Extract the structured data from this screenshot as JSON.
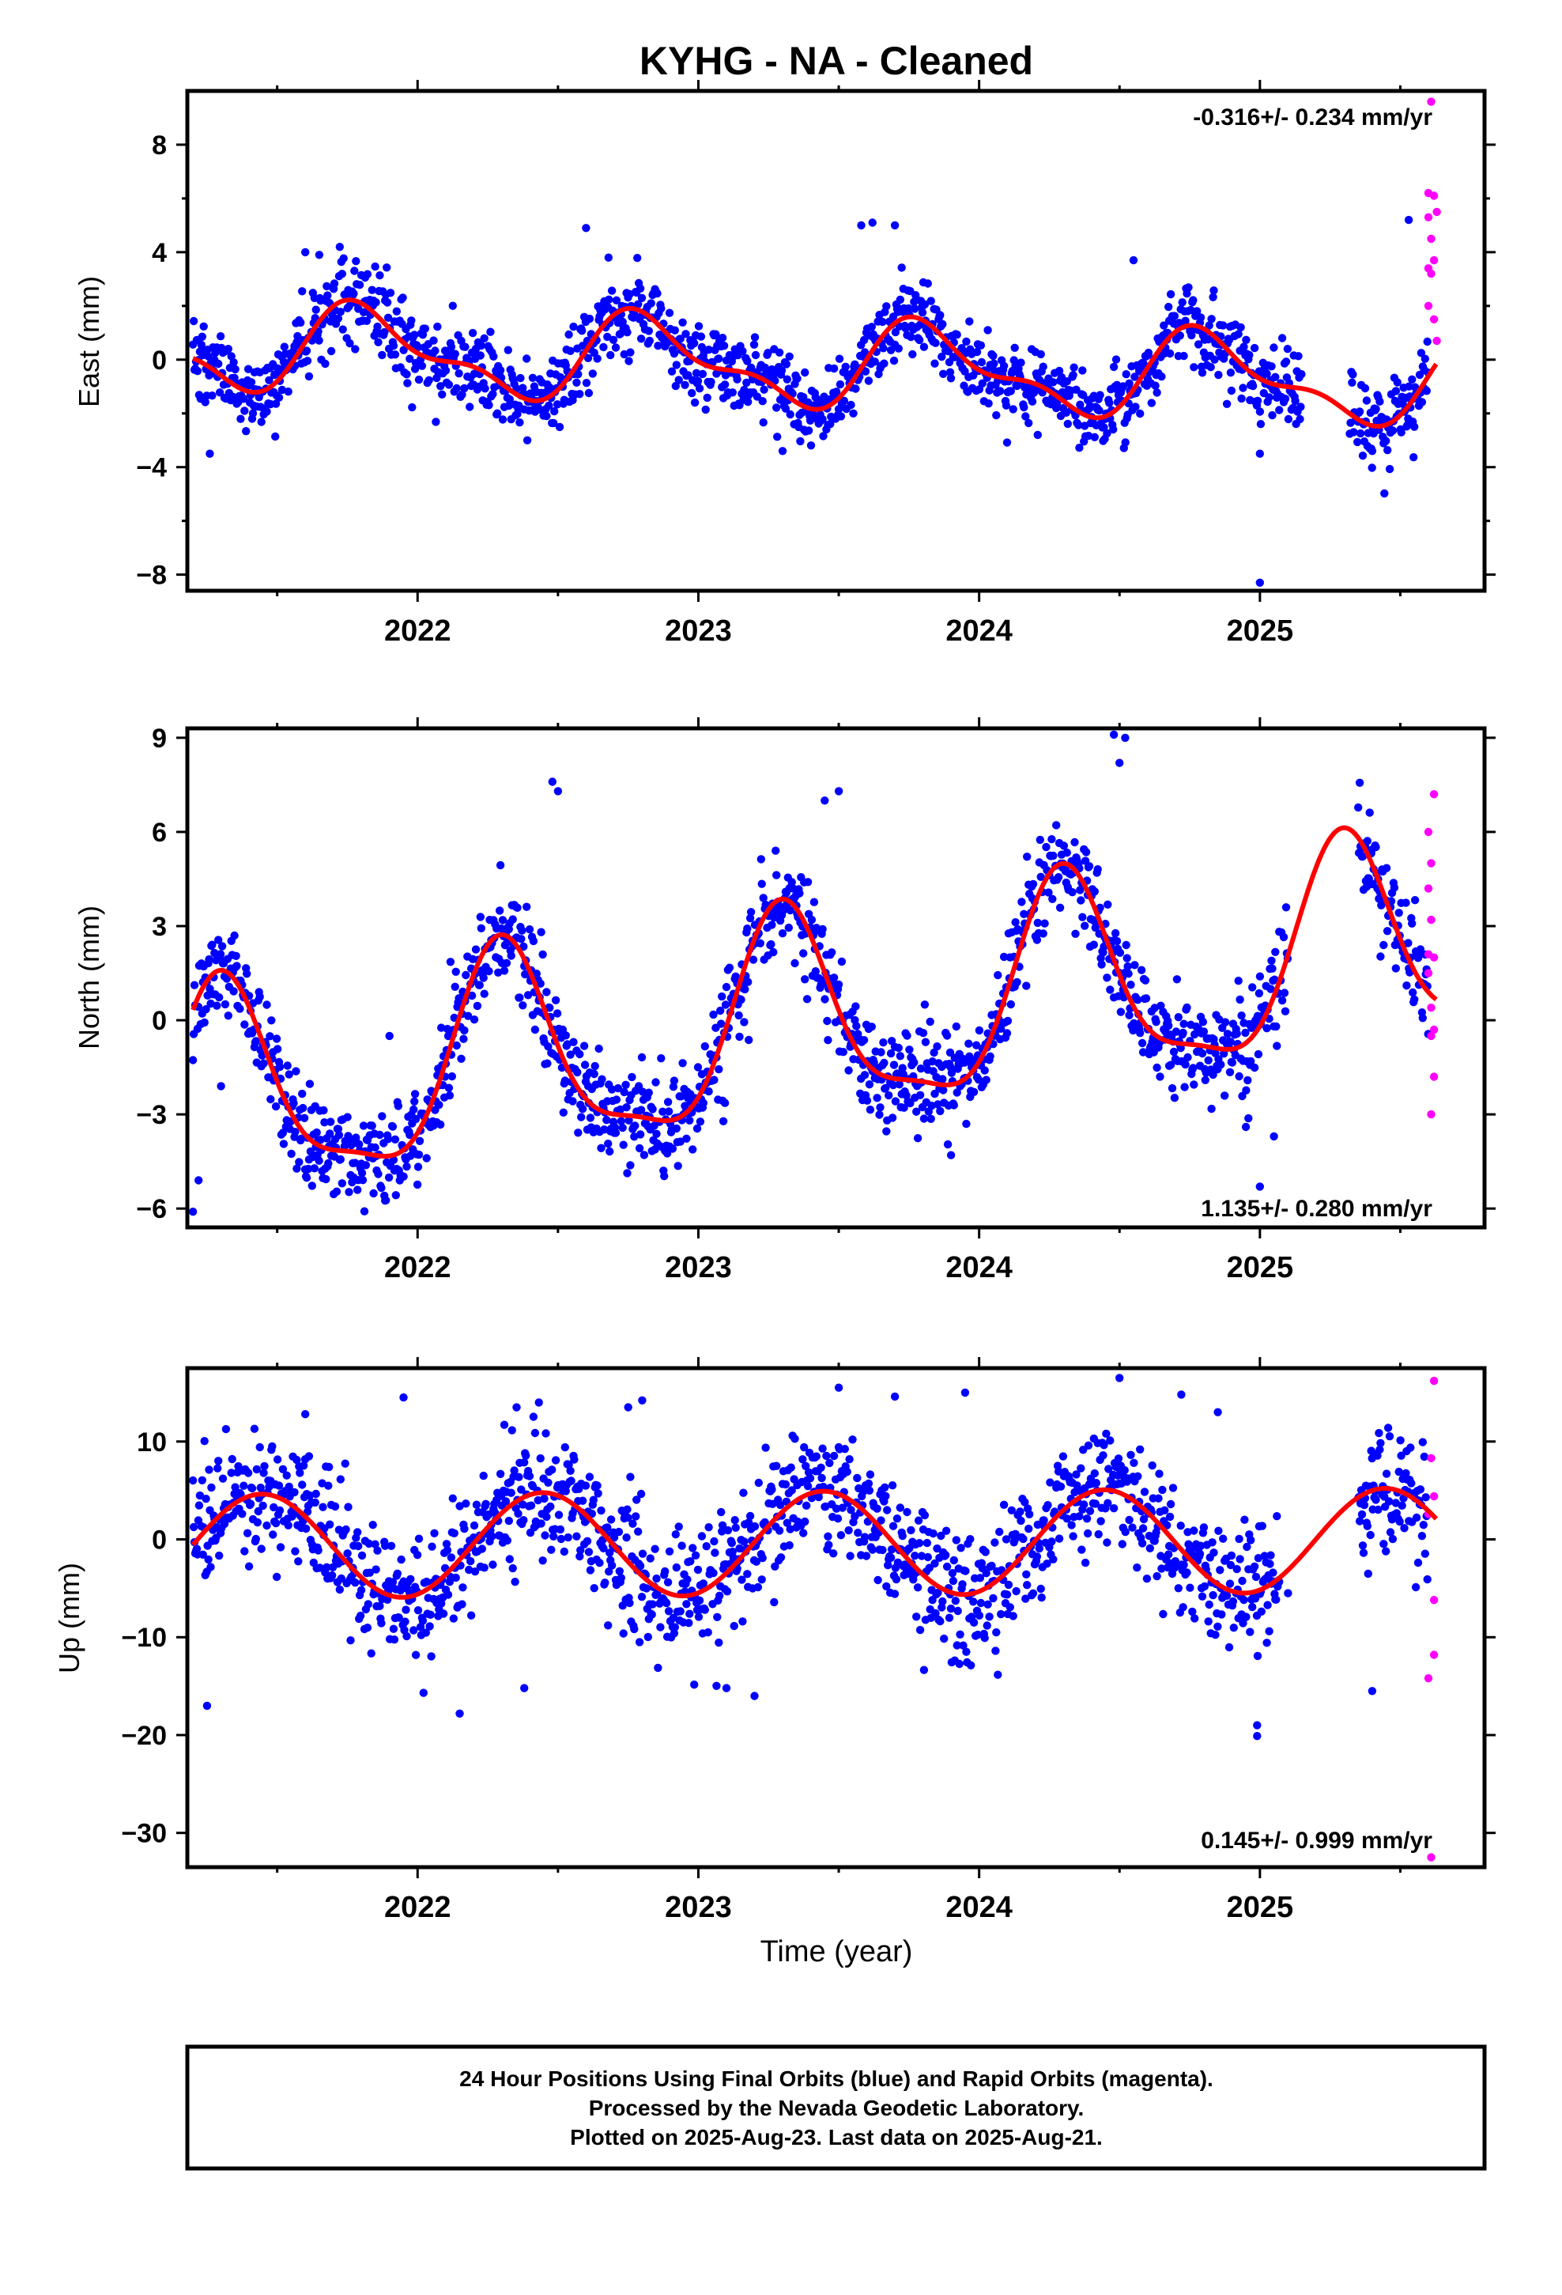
{
  "title": "KYHG  - NA - Cleaned",
  "footer": {
    "lines": [
      "24 Hour Positions Using Final Orbits (blue) and Rapid Orbits (magenta).",
      "Processed by the Nevada Geodetic Laboratory.",
      "Plotted on 2025-Aug-23. Last data on 2025-Aug-21."
    ]
  },
  "colors": {
    "final_orbits": "#0000ff",
    "rapid_orbits": "#ff00ff",
    "model": "#ff0000"
  },
  "chart_data": [
    {
      "type": "scatter",
      "panel": "east",
      "ylabel": "East (mm)",
      "xlabel": "",
      "xlim": [
        2021.18,
        2025.8
      ],
      "ylim": [
        -8.6,
        10.0
      ],
      "yticks": [
        -8,
        -4,
        0,
        4,
        8
      ],
      "yticks_minor": [
        -6,
        -2,
        2,
        6
      ],
      "xticks": [
        2022,
        2023,
        2024,
        2025
      ],
      "xticks_minor": [
        2021.5,
        2022.5,
        2023.5,
        2024.5,
        2025.5
      ],
      "grid": false,
      "rate_annotation": "-0.316+/- 0.234 mm/yr",
      "rate_position": "top-right",
      "model": {
        "offset": -0.2,
        "rate": -0.316,
        "ref_year": 2023.4,
        "annual_sin": -1.3,
        "annual_cos": 0.6,
        "semi_sin": 0.2,
        "semi_cos": -0.6
      },
      "final_series": {
        "segments": [
          [
            2021.2,
            2025.15
          ],
          [
            2025.32,
            2025.6
          ]
        ],
        "noise": 0.75,
        "outliers": [
          [
            2021.26,
            -3.5
          ],
          [
            2021.6,
            4.0
          ],
          [
            2021.65,
            3.9
          ],
          [
            2022.6,
            4.9
          ],
          [
            2022.68,
            3.8
          ],
          [
            2023.58,
            5.0
          ],
          [
            2023.62,
            5.1
          ],
          [
            2023.7,
            5.0
          ],
          [
            2023.3,
            -3.4
          ],
          [
            2024.55,
            3.7
          ],
          [
            2025.0,
            -3.5
          ],
          [
            2025.0,
            -8.3
          ],
          [
            2025.4,
            -3.4
          ],
          [
            2025.53,
            5.2
          ]
        ]
      },
      "rapid_points": [
        [
          2025.61,
          9.6
        ],
        [
          2025.6,
          6.2
        ],
        [
          2025.62,
          6.1
        ],
        [
          2025.63,
          5.5
        ],
        [
          2025.6,
          5.3
        ],
        [
          2025.61,
          4.5
        ],
        [
          2025.62,
          3.7
        ],
        [
          2025.6,
          3.4
        ],
        [
          2025.61,
          3.2
        ],
        [
          2025.6,
          2.0
        ],
        [
          2025.62,
          1.5
        ],
        [
          2025.63,
          0.7
        ]
      ]
    },
    {
      "type": "scatter",
      "panel": "north",
      "ylabel": "North (mm)",
      "xlabel": "",
      "xlim": [
        2021.18,
        2025.8
      ],
      "ylim": [
        -6.6,
        9.3
      ],
      "yticks": [
        -6,
        -3,
        0,
        3,
        6,
        9
      ],
      "xticks": [
        2022,
        2023,
        2024,
        2025
      ],
      "xticks_minor": [
        2021.5,
        2022.5,
        2023.5,
        2024.5,
        2025.5
      ],
      "grid": false,
      "rate_annotation": "1.135+/- 0.280 mm/yr",
      "rate_position": "bottom-right",
      "model": {
        "offset": -0.1,
        "rate": 1.135,
        "ref_year": 2023.4,
        "annual_sin": 3.0,
        "annual_cos": -1.1,
        "semi_sin": -0.4,
        "semi_cos": -0.8
      },
      "final_series": {
        "segments": [
          [
            2021.2,
            2025.1
          ],
          [
            2025.35,
            2025.6
          ]
        ],
        "noise": 0.8,
        "outliers": [
          [
            2021.2,
            -6.1
          ],
          [
            2021.22,
            -5.1
          ],
          [
            2021.3,
            -2.1
          ],
          [
            2021.9,
            -0.5
          ],
          [
            2022.48,
            7.6
          ],
          [
            2022.5,
            7.3
          ],
          [
            2023.5,
            7.3
          ],
          [
            2023.45,
            7.0
          ],
          [
            2024.48,
            9.1
          ],
          [
            2024.52,
            9.0
          ],
          [
            2024.5,
            8.2
          ],
          [
            2023.9,
            -4.3
          ],
          [
            2024.95,
            -3.4
          ],
          [
            2025.0,
            -5.3
          ],
          [
            2025.05,
            -3.7
          ]
        ]
      },
      "rapid_points": [
        [
          2025.62,
          7.2
        ],
        [
          2025.6,
          6.0
        ],
        [
          2025.61,
          5.0
        ],
        [
          2025.6,
          4.2
        ],
        [
          2025.61,
          3.2
        ],
        [
          2025.6,
          2.1
        ],
        [
          2025.62,
          2.0
        ],
        [
          2025.6,
          1.5
        ],
        [
          2025.61,
          0.4
        ],
        [
          2025.62,
          -0.3
        ],
        [
          2025.61,
          -0.5
        ],
        [
          2025.62,
          -1.8
        ],
        [
          2025.61,
          -3.0
        ]
      ]
    },
    {
      "type": "scatter",
      "panel": "up",
      "ylabel": "Up (mm)",
      "xlabel": "Time (year)",
      "xlim": [
        2021.18,
        2025.8
      ],
      "ylim": [
        -33.5,
        17.5
      ],
      "yticks": [
        -30,
        -20,
        -10,
        0,
        10
      ],
      "xticks": [
        2022,
        2023,
        2024,
        2025
      ],
      "xticks_minor": [
        2021.5,
        2022.5,
        2023.5,
        2024.5,
        2025.5
      ],
      "grid": false,
      "rate_annotation": "0.145+/- 0.999 mm/yr",
      "rate_position": "bottom-right",
      "model": {
        "offset": -0.4,
        "rate": 0.145,
        "ref_year": 2023.4,
        "annual_sin": 1.8,
        "annual_cos": -5.0,
        "semi_sin": 0.0,
        "semi_cos": 0.0
      },
      "final_series": {
        "segments": [
          [
            2021.2,
            2025.07
          ],
          [
            2025.35,
            2025.6
          ]
        ],
        "noise": 3.3,
        "outliers": [
          [
            2021.25,
            -17.0
          ],
          [
            2021.6,
            12.8
          ],
          [
            2021.95,
            14.5
          ],
          [
            2022.15,
            -17.8
          ],
          [
            2022.38,
            -15.2
          ],
          [
            2022.8,
            14.2
          ],
          [
            2022.75,
            13.5
          ],
          [
            2023.1,
            -15.2
          ],
          [
            2023.2,
            -16.0
          ],
          [
            2023.5,
            15.5
          ],
          [
            2023.7,
            14.6
          ],
          [
            2023.95,
            15.0
          ],
          [
            2024.5,
            16.5
          ],
          [
            2024.72,
            14.8
          ],
          [
            2024.85,
            13.0
          ],
          [
            2024.99,
            -19.0
          ],
          [
            2024.99,
            -20.1
          ],
          [
            2025.1,
            -5.5
          ],
          [
            2025.4,
            -15.5
          ]
        ]
      },
      "rapid_points": [
        [
          2025.62,
          16.2
        ],
        [
          2025.61,
          8.3
        ],
        [
          2025.62,
          4.4
        ],
        [
          2025.6,
          2.6
        ],
        [
          2025.62,
          -6.2
        ],
        [
          2025.62,
          -11.8
        ],
        [
          2025.6,
          -14.2
        ],
        [
          2025.61,
          -32.5
        ]
      ]
    }
  ]
}
